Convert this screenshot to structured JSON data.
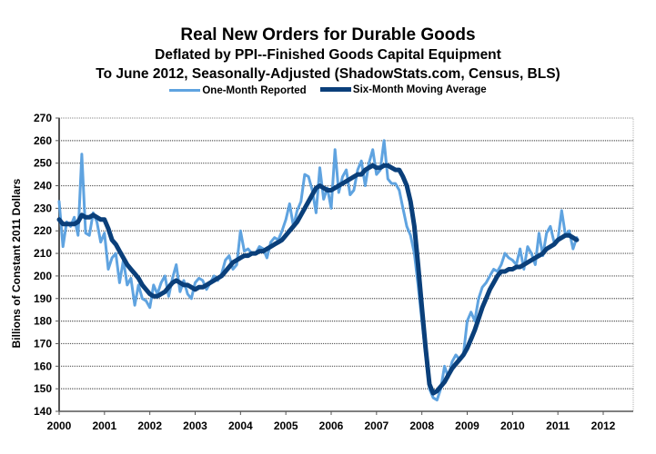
{
  "chart_data": {
    "type": "line",
    "title": "Real New Orders for Durable Goods",
    "subtitle_1": "Deflated by PPI--Finished Goods Capital Equipment",
    "subtitle_2": "To June 2012, Seasonally-Adjusted  (ShadowStats.com, Census, BLS)",
    "xlabel": "",
    "ylabel": "Billions of Constant 2011 Dollars",
    "ylim": [
      140,
      270
    ],
    "xlim": [
      2000,
      2012.58
    ],
    "grid": true,
    "legend_position": "top-center",
    "x_ticks": [
      "2000",
      "2001",
      "2002",
      "2003",
      "2004",
      "2005",
      "2006",
      "2007",
      "2008",
      "2009",
      "2010",
      "2011",
      "2012"
    ],
    "y_ticks": [
      "140",
      "150",
      "160",
      "170",
      "180",
      "190",
      "200",
      "210",
      "220",
      "230",
      "240",
      "250",
      "260",
      "270"
    ],
    "x_start": 2000.0,
    "x_step_months": 1,
    "series": [
      {
        "name": "One-Month Reported",
        "color": "#5fa3e0",
        "values": [
          233,
          213,
          224,
          222,
          226,
          218,
          254,
          219,
          218,
          228,
          224,
          215,
          219,
          203,
          208,
          210,
          197,
          207,
          196,
          199,
          187,
          196,
          190,
          189,
          186,
          196,
          192,
          197,
          200,
          191,
          199,
          205,
          193,
          198,
          192,
          190,
          197,
          199,
          198,
          194,
          197,
          200,
          198,
          201,
          207,
          209,
          203,
          205,
          220,
          211,
          212,
          210,
          210,
          213,
          212,
          208,
          215,
          217,
          216,
          220,
          225,
          232,
          222,
          229,
          233,
          245,
          244,
          238,
          228,
          248,
          234,
          239,
          230,
          256,
          237,
          244,
          247,
          236,
          238,
          247,
          251,
          240,
          250,
          256,
          245,
          247,
          260,
          243,
          241,
          241,
          238,
          230,
          222,
          218,
          210,
          196,
          180,
          165,
          150,
          146,
          145,
          150,
          160,
          155,
          162,
          165,
          163,
          165,
          180,
          184,
          180,
          190,
          195,
          197,
          200,
          203,
          202,
          205,
          210,
          208,
          207,
          205,
          212,
          203,
          213,
          210,
          205,
          219,
          209,
          219,
          222,
          215,
          216,
          229,
          218,
          220,
          212,
          217
        ],
        "smoothing": "none"
      },
      {
        "name": "Six-Month Moving Average",
        "color": "#0a3f7a",
        "values": [
          225,
          223,
          223,
          223,
          223,
          224,
          227,
          226,
          226,
          227,
          226,
          225,
          225,
          221,
          216,
          214,
          211,
          208,
          205,
          203,
          201,
          199,
          196,
          194,
          192,
          191,
          191,
          192,
          193,
          195,
          197,
          198,
          197,
          196,
          196,
          195,
          194,
          195,
          195,
          196,
          197,
          198,
          199,
          200,
          202,
          204,
          206,
          207,
          208,
          209,
          209,
          210,
          210,
          211,
          211,
          212,
          213,
          214,
          215,
          216,
          218,
          220,
          222,
          224,
          227,
          230,
          233,
          236,
          239,
          240,
          239,
          238,
          238,
          239,
          240,
          241,
          242,
          243,
          244,
          245,
          245,
          247,
          248,
          249,
          248,
          248,
          249,
          249,
          248,
          247,
          247,
          244,
          240,
          233,
          222,
          205,
          186,
          168,
          152,
          148,
          149,
          151,
          153,
          156,
          159,
          161,
          163,
          165,
          168,
          172,
          176,
          181,
          186,
          190,
          194,
          197,
          200,
          202,
          202,
          203,
          203,
          204,
          204,
          205,
          206,
          207,
          208,
          209,
          210,
          212,
          213,
          214,
          216,
          217,
          218,
          218,
          217,
          216
        ],
        "smoothing": "none"
      }
    ]
  }
}
